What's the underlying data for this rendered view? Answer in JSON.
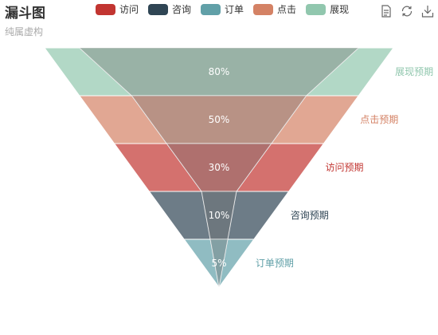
{
  "title": "漏斗图",
  "subtitle": "纯属虚构",
  "legend": [
    {
      "name": "访问",
      "color": "#c23531"
    },
    {
      "name": "咨询",
      "color": "#2f4554"
    },
    {
      "name": "订单",
      "color": "#61a0a8"
    },
    {
      "name": "点击",
      "color": "#d48265"
    },
    {
      "name": "展现",
      "color": "#91c7ae"
    }
  ],
  "toolbox": {
    "icons": [
      "data-view-icon",
      "restore-icon",
      "save-image-icon"
    ]
  },
  "chart_data": [
    {
      "type": "funnel",
      "series_role": "expected",
      "order": "descending",
      "max": 100,
      "series": [
        {
          "name": "展现预期",
          "value": 100,
          "color": "#91c7ae"
        },
        {
          "name": "点击预期",
          "value": 80,
          "color": "#d48265"
        },
        {
          "name": "访问预期",
          "value": 60,
          "color": "#c23531"
        },
        {
          "name": "咨询预期",
          "value": 40,
          "color": "#2f4554"
        },
        {
          "name": "订单预期",
          "value": 20,
          "color": "#61a0a8"
        }
      ],
      "label_position": "right",
      "opacity": 0.7
    },
    {
      "type": "funnel",
      "series_role": "actual",
      "order": "descending",
      "max": 100,
      "series": [
        {
          "name": "展现",
          "value": 80,
          "label": "80%",
          "color": "#91c7ae"
        },
        {
          "name": "点击",
          "value": 50,
          "label": "50%",
          "color": "#d48265"
        },
        {
          "name": "访问",
          "value": 30,
          "label": "30%",
          "color": "#c23531"
        },
        {
          "name": "咨询",
          "value": 10,
          "label": "10%",
          "color": "#2f4554"
        },
        {
          "name": "订单",
          "value": 5,
          "label": "5%",
          "color": "#61a0a8"
        }
      ],
      "label_position": "inside",
      "overlay_tint": "#a0a0a0"
    }
  ]
}
